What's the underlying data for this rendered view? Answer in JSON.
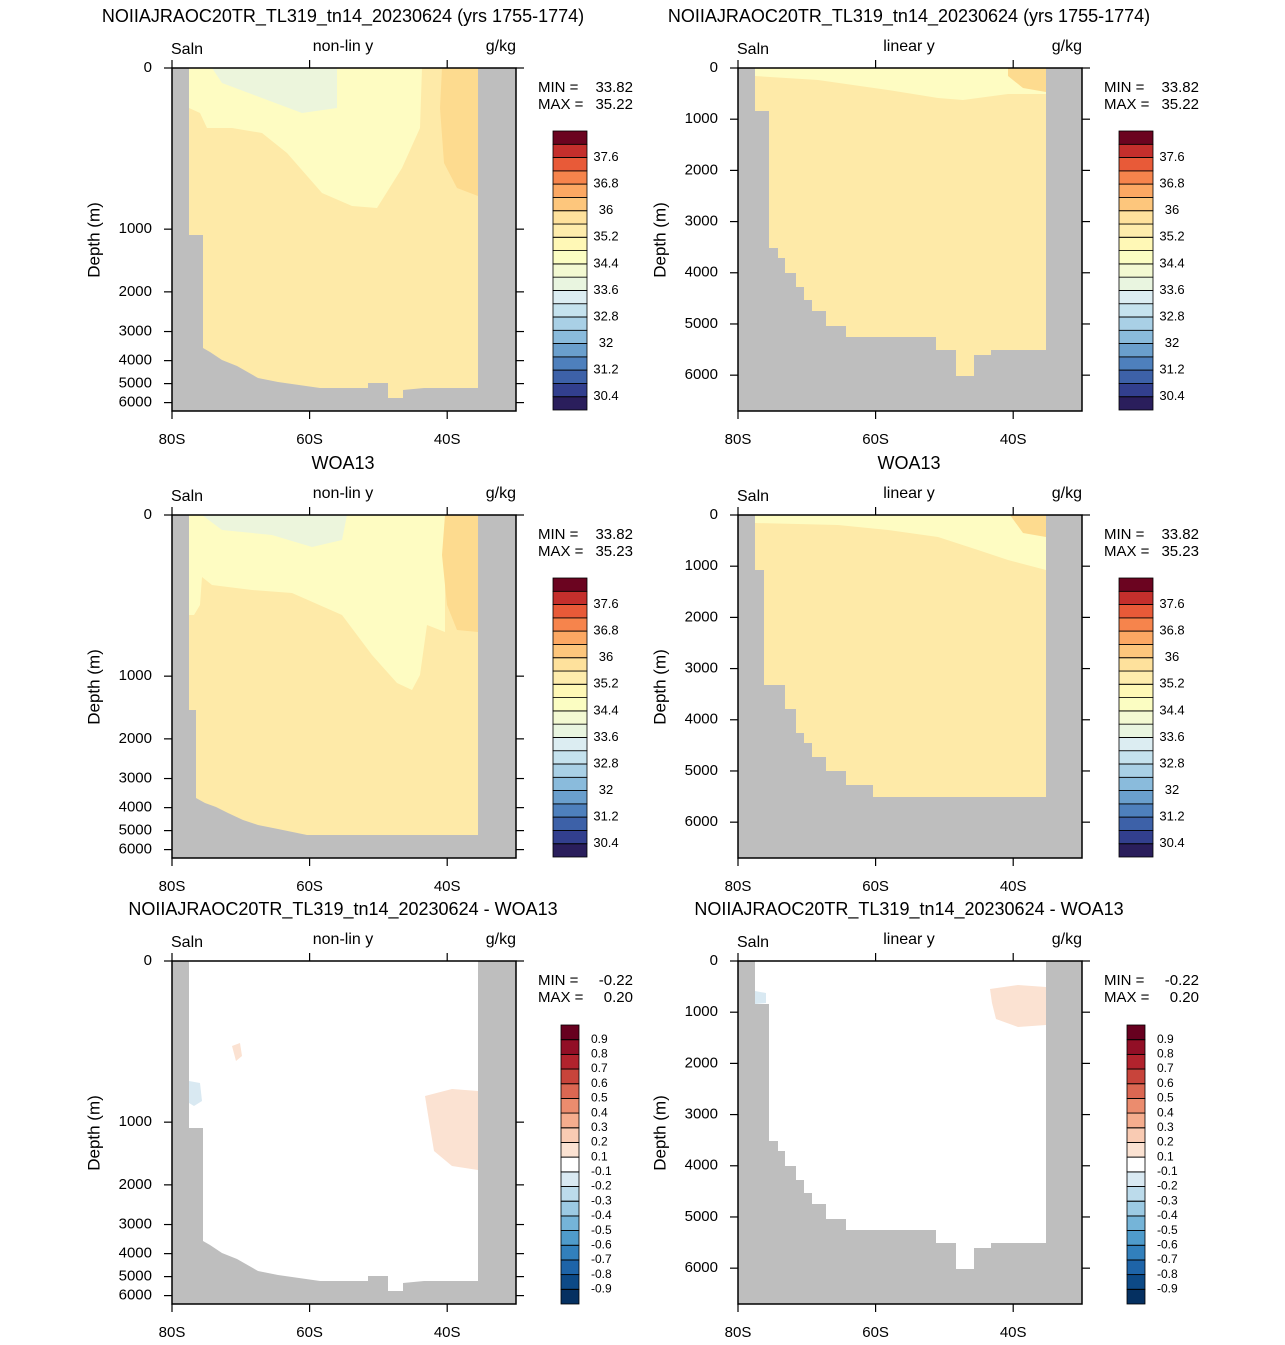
{
  "chart_data": [
    {
      "type": "contour",
      "title": "NOIIAJRAOC20TR_TL319_tn14_20230624 (yrs 1755-1774)",
      "left_label": "Saln",
      "center_label": "non-lin y",
      "right_label": "g/kg",
      "ylabel": "Depth (m)",
      "yscale": "non-linear",
      "xlim": [
        -80,
        -30
      ],
      "xticks": [
        {
          "value": -80,
          "label": "80S"
        },
        {
          "value": -60,
          "label": "60S"
        },
        {
          "value": -40,
          "label": "40S"
        }
      ],
      "ylim": [
        0,
        6500
      ],
      "yticks": [
        0,
        1000,
        2000,
        3000,
        4000,
        5000,
        6000
      ],
      "stats": [
        {
          "label": "MIN =",
          "value": 33.82
        },
        {
          "label": "MAX =",
          "value": 35.22
        }
      ],
      "colorbar": {
        "levels": [
          30.4,
          null,
          31.2,
          null,
          32,
          null,
          32.8,
          null,
          33.6,
          null,
          34.4,
          null,
          35.2,
          null,
          36,
          null,
          36.8,
          null,
          37.6,
          null
        ],
        "colors": [
          "#2a1e5c",
          "#323f8e",
          "#3d61a8",
          "#4e80bd",
          "#6a9fcd",
          "#8abbdc",
          "#a9d0e6",
          "#c5e2ee",
          "#dcedf2",
          "#e9f5e0",
          "#f3f9d2",
          "#fbfdc2",
          "#fff8b6",
          "#feecac",
          "#fee19c",
          "#fdc67c",
          "#fca863",
          "#f6844c",
          "#e85a38",
          "#c42f2c",
          "#6b0420"
        ]
      }
    },
    {
      "type": "contour",
      "title": "NOIIAJRAOC20TR_TL319_tn14_20230624 (yrs 1755-1774)",
      "left_label": "Saln",
      "center_label": "linear y",
      "right_label": "g/kg",
      "ylabel": "Depth (m)",
      "yscale": "linear",
      "xlim": [
        -80,
        -30
      ],
      "xticks": [
        {
          "value": -80,
          "label": "80S"
        },
        {
          "value": -60,
          "label": "60S"
        },
        {
          "value": -40,
          "label": "40S"
        }
      ],
      "ylim": [
        0,
        6700
      ],
      "yticks": [
        0,
        1000,
        2000,
        3000,
        4000,
        5000,
        6000
      ],
      "stats": [
        {
          "label": "MIN =",
          "value": 33.82
        },
        {
          "label": "MAX =",
          "value": 35.22
        }
      ],
      "colorbar": {
        "levels": [
          30.4,
          null,
          31.2,
          null,
          32,
          null,
          32.8,
          null,
          33.6,
          null,
          34.4,
          null,
          35.2,
          null,
          36,
          null,
          36.8,
          null,
          37.6,
          null
        ],
        "colors": [
          "#2a1e5c",
          "#323f8e",
          "#3d61a8",
          "#4e80bd",
          "#6a9fcd",
          "#8abbdc",
          "#a9d0e6",
          "#c5e2ee",
          "#dcedf2",
          "#e9f5e0",
          "#f3f9d2",
          "#fbfdc2",
          "#fff8b6",
          "#feecac",
          "#fee19c",
          "#fdc67c",
          "#fca863",
          "#f6844c",
          "#e85a38",
          "#c42f2c",
          "#6b0420"
        ]
      }
    },
    {
      "type": "contour",
      "title": "WOA13",
      "left_label": "Saln",
      "center_label": "non-lin y",
      "right_label": "g/kg",
      "ylabel": "Depth (m)",
      "yscale": "non-linear",
      "xlim": [
        -80,
        -30
      ],
      "xticks": [
        {
          "value": -80,
          "label": "80S"
        },
        {
          "value": -60,
          "label": "60S"
        },
        {
          "value": -40,
          "label": "40S"
        }
      ],
      "ylim": [
        0,
        6500
      ],
      "yticks": [
        0,
        1000,
        2000,
        3000,
        4000,
        5000,
        6000
      ],
      "stats": [
        {
          "label": "MIN =",
          "value": 33.82
        },
        {
          "label": "MAX =",
          "value": 35.23
        }
      ],
      "colorbar": {
        "levels": [
          30.4,
          null,
          31.2,
          null,
          32,
          null,
          32.8,
          null,
          33.6,
          null,
          34.4,
          null,
          35.2,
          null,
          36,
          null,
          36.8,
          null,
          37.6,
          null
        ],
        "colors": [
          "#2a1e5c",
          "#323f8e",
          "#3d61a8",
          "#4e80bd",
          "#6a9fcd",
          "#8abbdc",
          "#a9d0e6",
          "#c5e2ee",
          "#dcedf2",
          "#e9f5e0",
          "#f3f9d2",
          "#fbfdc2",
          "#fff8b6",
          "#feecac",
          "#fee19c",
          "#fdc67c",
          "#fca863",
          "#f6844c",
          "#e85a38",
          "#c42f2c",
          "#6b0420"
        ]
      }
    },
    {
      "type": "contour",
      "title": "WOA13",
      "left_label": "Saln",
      "center_label": "linear y",
      "right_label": "g/kg",
      "ylabel": "Depth (m)",
      "yscale": "linear",
      "xlim": [
        -80,
        -30
      ],
      "xticks": [
        {
          "value": -80,
          "label": "80S"
        },
        {
          "value": -60,
          "label": "60S"
        },
        {
          "value": -40,
          "label": "40S"
        }
      ],
      "ylim": [
        0,
        6700
      ],
      "yticks": [
        0,
        1000,
        2000,
        3000,
        4000,
        5000,
        6000
      ],
      "stats": [
        {
          "label": "MIN =",
          "value": 33.82
        },
        {
          "label": "MAX =",
          "value": 35.23
        }
      ],
      "colorbar": {
        "levels": [
          30.4,
          null,
          31.2,
          null,
          32,
          null,
          32.8,
          null,
          33.6,
          null,
          34.4,
          null,
          35.2,
          null,
          36,
          null,
          36.8,
          null,
          37.6,
          null
        ],
        "colors": [
          "#2a1e5c",
          "#323f8e",
          "#3d61a8",
          "#4e80bd",
          "#6a9fcd",
          "#8abbdc",
          "#a9d0e6",
          "#c5e2ee",
          "#dcedf2",
          "#e9f5e0",
          "#f3f9d2",
          "#fbfdc2",
          "#fff8b6",
          "#feecac",
          "#fee19c",
          "#fdc67c",
          "#fca863",
          "#f6844c",
          "#e85a38",
          "#c42f2c",
          "#6b0420"
        ]
      }
    },
    {
      "type": "contour",
      "title": "NOIIAJRAOC20TR_TL319_tn14_20230624 - WOA13",
      "left_label": "Saln",
      "center_label": "non-lin y",
      "right_label": "g/kg",
      "ylabel": "Depth (m)",
      "yscale": "non-linear",
      "xlim": [
        -80,
        -30
      ],
      "xticks": [
        {
          "value": -80,
          "label": "80S"
        },
        {
          "value": -60,
          "label": "60S"
        },
        {
          "value": -40,
          "label": "40S"
        }
      ],
      "ylim": [
        0,
        6500
      ],
      "yticks": [
        0,
        1000,
        2000,
        3000,
        4000,
        5000,
        6000
      ],
      "stats": [
        {
          "label": "MIN =",
          "value": -0.22
        },
        {
          "label": "MAX =",
          "value": 0.2,
          "value_label": "0.20"
        }
      ],
      "colorbar": {
        "levels": [
          -0.9,
          -0.8,
          -0.7,
          -0.6,
          -0.5,
          -0.4,
          -0.3,
          -0.2,
          -0.1,
          0.1,
          0.2,
          0.3,
          0.4,
          0.5,
          0.6,
          0.7,
          0.8,
          0.9
        ],
        "colors": [
          "#053061",
          "#0d4a87",
          "#1e64a8",
          "#3280bc",
          "#4f9bcb",
          "#75b4d8",
          "#9ccae3",
          "#bcdbeb",
          "#d9e9f2",
          "#ffffff",
          "#fbe2d2",
          "#f9cbb3",
          "#f5ad8e",
          "#eb8c6e",
          "#db6752",
          "#c8443b",
          "#b2232d",
          "#920f26",
          "#67001f"
        ]
      }
    },
    {
      "type": "contour",
      "title": "NOIIAJRAOC20TR_TL319_tn14_20230624 - WOA13",
      "left_label": "Saln",
      "center_label": "linear y",
      "right_label": "g/kg",
      "ylabel": "Depth (m)",
      "yscale": "linear",
      "xlim": [
        -80,
        -30
      ],
      "xticks": [
        {
          "value": -80,
          "label": "80S"
        },
        {
          "value": -60,
          "label": "60S"
        },
        {
          "value": -40,
          "label": "40S"
        }
      ],
      "ylim": [
        0,
        6700
      ],
      "yticks": [
        0,
        1000,
        2000,
        3000,
        4000,
        5000,
        6000
      ],
      "stats": [
        {
          "label": "MIN =",
          "value": -0.22
        },
        {
          "label": "MAX =",
          "value": 0.2,
          "value_label": "0.20"
        }
      ],
      "colorbar": {
        "levels": [
          -0.9,
          -0.8,
          -0.7,
          -0.6,
          -0.5,
          -0.4,
          -0.3,
          -0.2,
          -0.1,
          0.1,
          0.2,
          0.3,
          0.4,
          0.5,
          0.6,
          0.7,
          0.8,
          0.9
        ],
        "colors": [
          "#053061",
          "#0d4a87",
          "#1e64a8",
          "#3280bc",
          "#4f9bcb",
          "#75b4d8",
          "#9ccae3",
          "#bcdbeb",
          "#d9e9f2",
          "#ffffff",
          "#fbe2d2",
          "#f9cbb3",
          "#f5ad8e",
          "#eb8c6e",
          "#db6752",
          "#c8443b",
          "#b2232d",
          "#920f26",
          "#67001f"
        ]
      }
    }
  ]
}
